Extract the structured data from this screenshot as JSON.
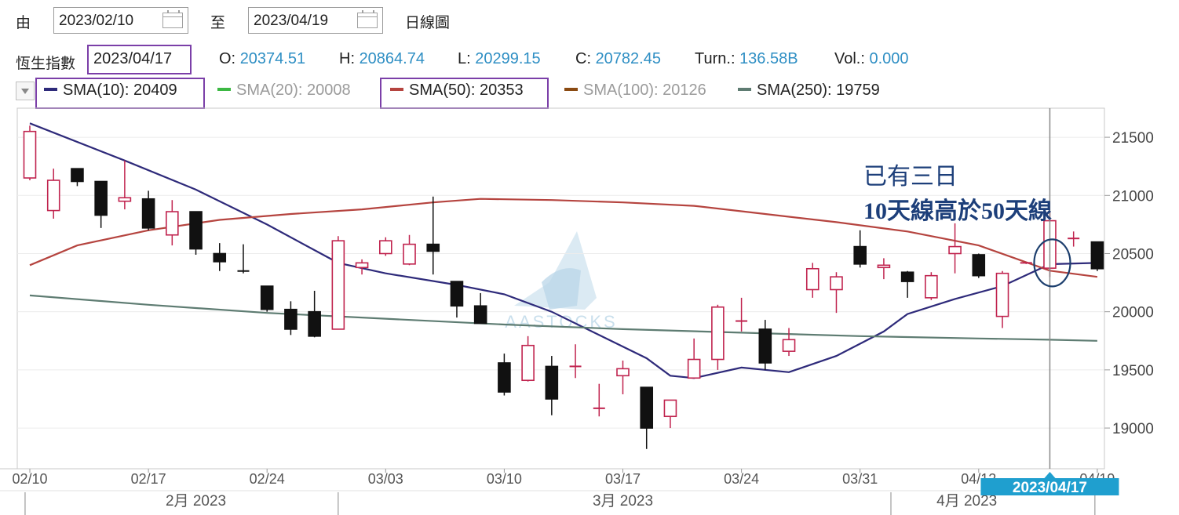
{
  "toolbar": {
    "from_label": "由",
    "from_date": "2023/02/10",
    "to_label": "至",
    "to_date": "2023/04/19",
    "chart_type": "日線圖"
  },
  "quote": {
    "index_name": "恆生指數",
    "date": "2023/04/17",
    "open_label": "O:",
    "open": "20374.51",
    "high_label": "H:",
    "high": "20864.74",
    "low_label": "L:",
    "low": "20299.15",
    "close_label": "C:",
    "close": "20782.45",
    "turnover_label": "Turn.:",
    "turnover": "136.58B",
    "volume_label": "Vol.:",
    "volume": "0.000"
  },
  "sma_legend": [
    {
      "label": "SMA(10): 20409",
      "color": "#2e2a7a",
      "active": true
    },
    {
      "label": "SMA(20): 20008",
      "color": "#3cb843",
      "active": false
    },
    {
      "label": "SMA(50): 20353",
      "color": "#b5443f",
      "active": true
    },
    {
      "label": "SMA(100): 20126",
      "color": "#8a4a12",
      "active": false
    },
    {
      "label": "SMA(250): 19759",
      "color": "#5e7c72",
      "active": true
    }
  ],
  "annotation": {
    "line1": "已有三日",
    "line2": "10天線高於50天線"
  },
  "watermark": "AASTOCKS",
  "colors": {
    "up_candle": "#c0234e",
    "down_candle": "#111111",
    "sma10": "#2e2a7a",
    "sma50": "#b5443f",
    "sma250": "#5e7c72",
    "cursor_label_bg": "#1f9fcf",
    "highlight_box": "#7b3fa8"
  },
  "chart_data": {
    "type": "candlestick",
    "title": "",
    "ylim": [
      18650,
      21750
    ],
    "y_ticks": [
      19000,
      19500,
      20000,
      20500,
      21000,
      21500
    ],
    "x_tick_labels": [
      {
        "label": "02/10",
        "index": 0
      },
      {
        "label": "02/17",
        "index": 5
      },
      {
        "label": "02/24",
        "index": 10
      },
      {
        "label": "03/03",
        "index": 15
      },
      {
        "label": "03/10",
        "index": 20
      },
      {
        "label": "03/17",
        "index": 25
      },
      {
        "label": "03/24",
        "index": 30
      },
      {
        "label": "03/31",
        "index": 35
      },
      {
        "label": "04/12",
        "index": 40
      },
      {
        "label": "04/19",
        "index": 45
      }
    ],
    "month_labels": [
      {
        "label": "2月 2023",
        "index": 7
      },
      {
        "label": "3月 2023",
        "index": 25
      },
      {
        "label": "4月 2023",
        "index": 39.5
      }
    ],
    "month_separators": [
      -0.2,
      13,
      36.3,
      44.9
    ],
    "cursor": {
      "index": 43,
      "label": "2023/04/17"
    },
    "highlight_circle_index": 43.1,
    "highlight_circle_value": 20420,
    "candles": [
      {
        "o": 21150,
        "h": 21600,
        "l": 21130,
        "c": 21550
      },
      {
        "o": 20870,
        "h": 21230,
        "l": 20800,
        "c": 21130
      },
      {
        "o": 21230,
        "h": 21230,
        "l": 21080,
        "c": 21120
      },
      {
        "o": 21120,
        "h": 21120,
        "l": 20720,
        "c": 20830
      },
      {
        "o": 20950,
        "h": 21300,
        "l": 20880,
        "c": 20980
      },
      {
        "o": 20970,
        "h": 21040,
        "l": 20700,
        "c": 20720
      },
      {
        "o": 20660,
        "h": 20960,
        "l": 20570,
        "c": 20860
      },
      {
        "o": 20860,
        "h": 20860,
        "l": 20490,
        "c": 20540
      },
      {
        "o": 20500,
        "h": 20590,
        "l": 20350,
        "c": 20430
      },
      {
        "o": 20350,
        "h": 20580,
        "l": 20330,
        "c": 20340
      },
      {
        "o": 20220,
        "h": 20220,
        "l": 20000,
        "c": 20020
      },
      {
        "o": 20020,
        "h": 20090,
        "l": 19800,
        "c": 19850
      },
      {
        "o": 20000,
        "h": 20180,
        "l": 19780,
        "c": 19790
      },
      {
        "o": 19850,
        "h": 20650,
        "l": 19850,
        "c": 20610
      },
      {
        "o": 20380,
        "h": 20450,
        "l": 20320,
        "c": 20420
      },
      {
        "o": 20500,
        "h": 20640,
        "l": 20480,
        "c": 20610
      },
      {
        "o": 20410,
        "h": 20660,
        "l": 20400,
        "c": 20580
      },
      {
        "o": 20580,
        "h": 20990,
        "l": 20320,
        "c": 20520
      },
      {
        "o": 20260,
        "h": 20260,
        "l": 19950,
        "c": 20050
      },
      {
        "o": 20050,
        "h": 20160,
        "l": 19900,
        "c": 19900
      },
      {
        "o": 19560,
        "h": 19640,
        "l": 19280,
        "c": 19310
      },
      {
        "o": 19410,
        "h": 19790,
        "l": 19400,
        "c": 19710
      },
      {
        "o": 19530,
        "h": 19620,
        "l": 19110,
        "c": 19250
      },
      {
        "o": 19520,
        "h": 19720,
        "l": 19430,
        "c": 19530
      },
      {
        "o": 19170,
        "h": 19380,
        "l": 19100,
        "c": 19170
      },
      {
        "o": 19450,
        "h": 19580,
        "l": 19290,
        "c": 19510
      },
      {
        "o": 19350,
        "h": 19350,
        "l": 18820,
        "c": 19000
      },
      {
        "o": 19100,
        "h": 19240,
        "l": 19000,
        "c": 19240
      },
      {
        "o": 19430,
        "h": 19770,
        "l": 19440,
        "c": 19590
      },
      {
        "o": 19590,
        "h": 20060,
        "l": 19500,
        "c": 20040
      },
      {
        "o": 19920,
        "h": 20120,
        "l": 19830,
        "c": 19920
      },
      {
        "o": 19850,
        "h": 19930,
        "l": 19500,
        "c": 19560
      },
      {
        "o": 19660,
        "h": 19860,
        "l": 19620,
        "c": 19760
      },
      {
        "o": 20190,
        "h": 20420,
        "l": 20120,
        "c": 20370
      },
      {
        "o": 20190,
        "h": 20340,
        "l": 19990,
        "c": 20300
      },
      {
        "o": 20560,
        "h": 20700,
        "l": 20380,
        "c": 20410
      },
      {
        "o": 20380,
        "h": 20460,
        "l": 20280,
        "c": 20400
      },
      {
        "o": 20340,
        "h": 20350,
        "l": 20120,
        "c": 20260
      },
      {
        "o": 20120,
        "h": 20340,
        "l": 20100,
        "c": 20310
      },
      {
        "o": 20500,
        "h": 20760,
        "l": 20330,
        "c": 20560
      },
      {
        "o": 20490,
        "h": 20500,
        "l": 20290,
        "c": 20310
      },
      {
        "o": 19960,
        "h": 20350,
        "l": 19860,
        "c": 20330
      },
      {
        "o": 20420,
        "h": 20420,
        "l": 20410,
        "c": 20420
      },
      {
        "o": 20374.51,
        "h": 20864.74,
        "l": 20299.15,
        "c": 20782.45
      },
      {
        "o": 20630,
        "h": 20690,
        "l": 20560,
        "c": 20630
      },
      {
        "o": 20600,
        "h": 20600,
        "l": 20350,
        "c": 20370
      }
    ],
    "series": [
      {
        "name": "SMA(10)",
        "color": "#2e2a7a",
        "points": [
          [
            0,
            21620
          ],
          [
            4,
            21300
          ],
          [
            7,
            21050
          ],
          [
            10,
            20750
          ],
          [
            13,
            20420
          ],
          [
            15,
            20330
          ],
          [
            18,
            20230
          ],
          [
            20,
            20150
          ],
          [
            22,
            20000
          ],
          [
            24,
            19800
          ],
          [
            26,
            19600
          ],
          [
            27,
            19450
          ],
          [
            28,
            19430
          ],
          [
            30,
            19520
          ],
          [
            32,
            19480
          ],
          [
            34,
            19620
          ],
          [
            36,
            19830
          ],
          [
            37,
            19980
          ],
          [
            39,
            20110
          ],
          [
            41,
            20220
          ],
          [
            43,
            20409
          ],
          [
            45,
            20420
          ]
        ]
      },
      {
        "name": "SMA(50)",
        "color": "#b5443f",
        "points": [
          [
            0,
            20400
          ],
          [
            2,
            20570
          ],
          [
            5,
            20700
          ],
          [
            8,
            20790
          ],
          [
            11,
            20840
          ],
          [
            14,
            20880
          ],
          [
            17,
            20940
          ],
          [
            19,
            20970
          ],
          [
            22,
            20960
          ],
          [
            25,
            20940
          ],
          [
            28,
            20910
          ],
          [
            31,
            20840
          ],
          [
            34,
            20770
          ],
          [
            37,
            20690
          ],
          [
            40,
            20570
          ],
          [
            43,
            20353
          ],
          [
            45,
            20300
          ]
        ]
      },
      {
        "name": "SMA(250)",
        "color": "#5e7c72",
        "points": [
          [
            0,
            20140
          ],
          [
            5,
            20060
          ],
          [
            10,
            19990
          ],
          [
            15,
            19940
          ],
          [
            20,
            19890
          ],
          [
            25,
            19850
          ],
          [
            30,
            19820
          ],
          [
            35,
            19790
          ],
          [
            40,
            19770
          ],
          [
            43,
            19759
          ],
          [
            45,
            19750
          ]
        ]
      }
    ]
  }
}
